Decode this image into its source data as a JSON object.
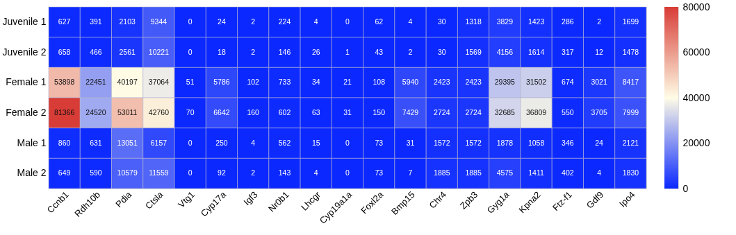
{
  "chart_data": {
    "type": "heatmap",
    "categories": [
      "Ccnb1",
      "Rdh10b",
      "Pdia",
      "Ctsla",
      "Vtg1",
      "Cyp17a",
      "Igf3",
      "Nr0b1",
      "Lhcgr",
      "Cyp19a1a",
      "Foxl2a",
      "Bmp15",
      "Chr4",
      "Zpb3",
      "Gyg1a",
      "Kpna2",
      "Ftz-f1",
      "Gdf9",
      "Ipo4"
    ],
    "y_categories": [
      "Juvenile 1",
      "Juvenile 2",
      "Female 1",
      "Female 2",
      "Male 1",
      "Male 2"
    ],
    "cells": [
      [
        627,
        391,
        2103,
        9344,
        0,
        24,
        2,
        224,
        4,
        0,
        62,
        4,
        30,
        1318,
        3829,
        1423,
        286,
        2,
        1699
      ],
      [
        658,
        466,
        2561,
        10221,
        0,
        18,
        2,
        146,
        26,
        1,
        43,
        2,
        30,
        1569,
        4156,
        1614,
        317,
        12,
        1478
      ],
      [
        53898,
        22451,
        40197,
        37064,
        51,
        5786,
        102,
        733,
        34,
        21,
        108,
        5940,
        2423,
        2423,
        29395,
        31502,
        674,
        3021,
        8417
      ],
      [
        81366,
        24520,
        53011,
        42760,
        70,
        6642,
        160,
        602,
        63,
        31,
        150,
        7429,
        2724,
        2724,
        32685,
        36809,
        550,
        3705,
        7999
      ],
      [
        860,
        631,
        13051,
        6157,
        0,
        250,
        4,
        562,
        15,
        0,
        73,
        31,
        1572,
        1572,
        1878,
        1058,
        346,
        24,
        2121
      ],
      [
        649,
        590,
        10579,
        11559,
        0,
        92,
        2,
        143,
        4,
        0,
        73,
        7,
        1885,
        1885,
        4575,
        1411,
        402,
        4,
        1830
      ]
    ],
    "clim": [
      0,
      80000
    ],
    "cticks": [
      0,
      20000,
      40000,
      60000,
      80000
    ],
    "data_labels": true
  }
}
